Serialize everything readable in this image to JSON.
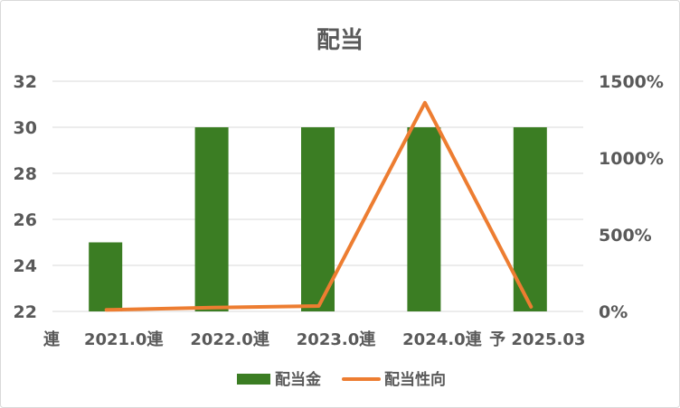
{
  "chart_data": {
    "type": "bar",
    "title": "配当",
    "leading_label": "連",
    "categories": [
      "2021.0連",
      "2022.0連",
      "2023.0連",
      "2024.0連",
      "予 2025.03"
    ],
    "series": [
      {
        "name": "配当金",
        "type": "bar",
        "axis": "left",
        "color": "#3b7d23",
        "values": [
          25,
          30,
          30,
          30,
          30
        ]
      },
      {
        "name": "配当性向",
        "type": "line",
        "axis": "right",
        "color": "#ed7d31",
        "values": [
          10,
          25,
          35,
          1360,
          30
        ]
      }
    ],
    "y_left": {
      "min": 22,
      "max": 32,
      "step": 2
    },
    "y_right": {
      "min": 0,
      "max": 1500,
      "step": 500,
      "tick_suffix": "%"
    },
    "grid": true,
    "legend": "bottom",
    "gridline_color": "#d9d9d9",
    "border_color": "#d9d9d9"
  }
}
